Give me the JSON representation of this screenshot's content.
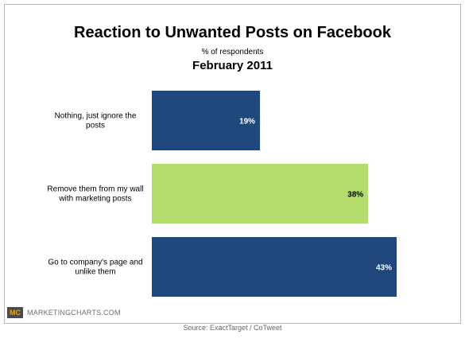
{
  "header": {
    "title": "Reaction to Unwanted Posts on Facebook",
    "subtitle": "% of respondents",
    "date": "February 2011"
  },
  "logo": {
    "mark": "MC",
    "text": "MARKETINGCHARTS.COM"
  },
  "footer": {
    "source": "Source: ExactTarget / CoTweet"
  },
  "colors": {
    "dark_blue": "#1f497d",
    "light_green": "#b3dc6c"
  },
  "chart_data": {
    "type": "bar",
    "orientation": "horizontal",
    "title": "Reaction to Unwanted Posts on Facebook",
    "subtitle": "% of respondents",
    "xlabel": "",
    "ylabel": "",
    "xlim": [
      0,
      45
    ],
    "grid": false,
    "legend": "none",
    "categories": [
      [
        "Nothing, just ignore the",
        "posts"
      ],
      [
        "Remove them from my wall",
        "with marketing posts"
      ],
      [
        "Go to company's page and",
        "unlike them"
      ]
    ],
    "values": [
      19,
      38,
      43
    ],
    "value_labels": [
      "19%",
      "38%",
      "43%"
    ],
    "bar_colors": [
      "#1f497d",
      "#b3dc6c",
      "#1f497d"
    ],
    "label_colors": [
      "#ffffff",
      "#000000",
      "#ffffff"
    ]
  }
}
